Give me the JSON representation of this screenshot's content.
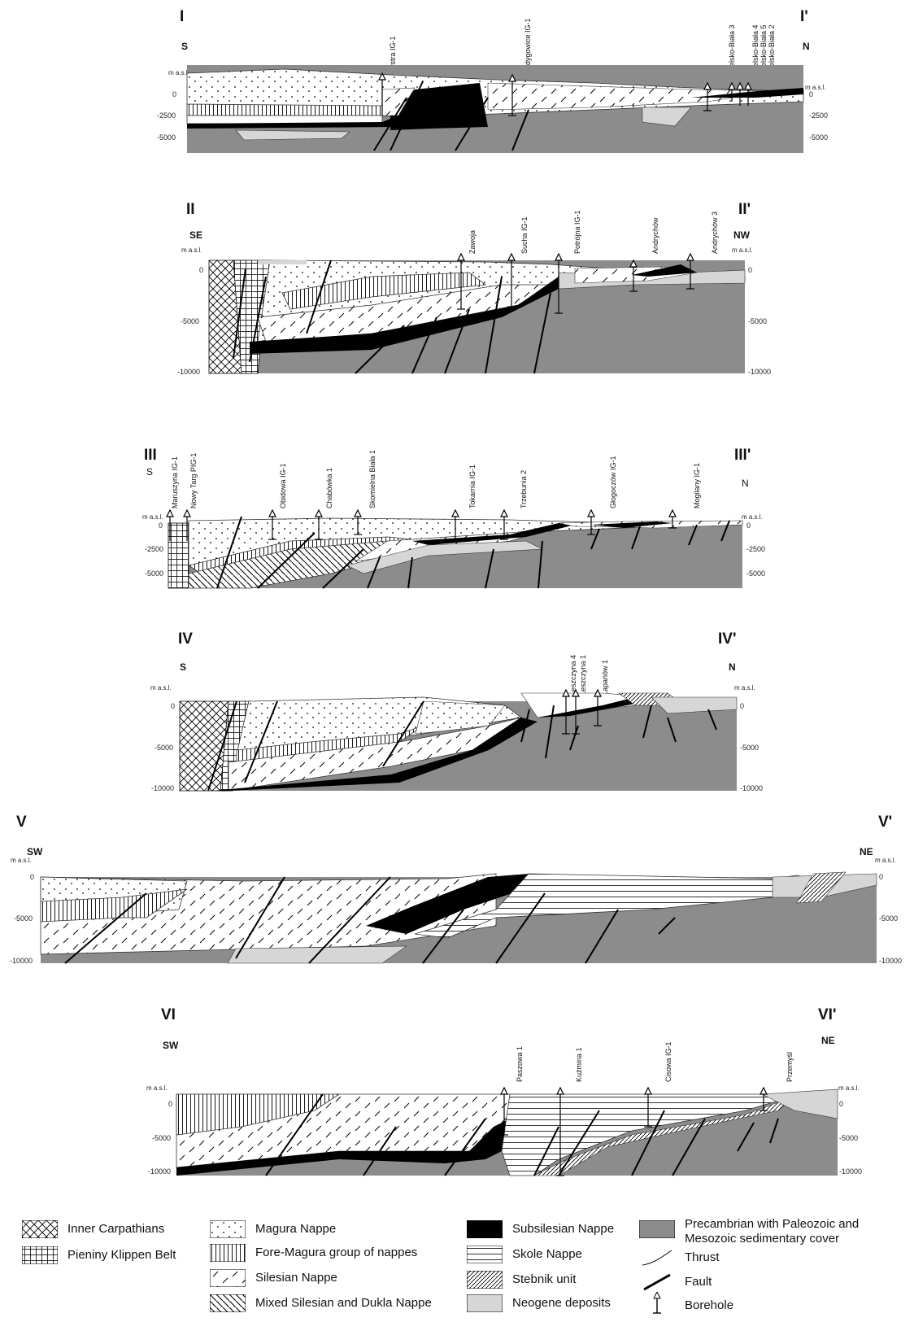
{
  "sections": [
    {
      "id": "I",
      "start": "I",
      "end": "I'",
      "left_dir": "S",
      "right_dir": "N",
      "masl": "m a.s.l.",
      "left_ticks": [
        "0",
        "-2500",
        "-5000"
      ],
      "right_ticks": [
        "0",
        "-2500",
        "-5000"
      ],
      "boreholes": [
        "Bystra IG-1",
        "Łodygowice IG-1",
        "Bielsko-Biała 3",
        "Bielsko-Biała 4",
        "Bielsko-Biała 5",
        "Bielsko-Biała 2"
      ]
    },
    {
      "id": "II",
      "start": "II",
      "end": "II'",
      "left_dir": "SE",
      "right_dir": "NW",
      "masl": "m a.s.l.",
      "left_ticks": [
        "0",
        "-5000",
        "-10000"
      ],
      "right_ticks": [
        "0",
        "-5000",
        "-10000"
      ],
      "boreholes": [
        "Zawoja",
        "Sucha IG-1",
        "Potrójna IG-1",
        "Andrychów",
        "Andrychów 3"
      ]
    },
    {
      "id": "III",
      "start": "III",
      "end": "III'",
      "left_dir": "S",
      "right_dir": "N",
      "masl": "m a.s.l.",
      "left_ticks": [
        "0",
        "-2500",
        "-5000"
      ],
      "right_ticks": [
        "0",
        "-2500",
        "-5000"
      ],
      "boreholes": [
        "Maruszyna IG-1",
        "Nowy Targ PIG-1",
        "Obidowa IG-1",
        "Chabówka 1",
        "Skomielna Biała 1",
        "Tokarnia IG-1",
        "Trzebunia 2",
        "Głogoczów IG-1",
        "Mogilany IG-1"
      ]
    },
    {
      "id": "IV",
      "start": "IV",
      "end": "IV'",
      "left_dir": "S",
      "right_dir": "N",
      "masl": "m a.s.l.",
      "left_ticks": [
        "0",
        "-5000",
        "-10000"
      ],
      "right_ticks": [
        "0",
        "-5000",
        "-10000"
      ],
      "boreholes": [
        "Leszczyna 4",
        "Leszczyna 1",
        "Łapanów 1"
      ]
    },
    {
      "id": "V",
      "start": "V",
      "end": "V'",
      "left_dir": "SW",
      "right_dir": "NE",
      "masl": "m a.s.l.",
      "left_ticks": [
        "0",
        "-5000",
        "-10000"
      ],
      "right_ticks": [
        "0",
        "-5000",
        "-10000"
      ],
      "boreholes": []
    },
    {
      "id": "VI",
      "start": "VI",
      "end": "VI'",
      "left_dir": "SW",
      "right_dir": "NE",
      "masl": "m a.s.l.",
      "left_ticks": [
        "0",
        "-5000",
        "-10000"
      ],
      "right_ticks": [
        "0",
        "-5000",
        "-10000"
      ],
      "boreholes": [
        "Paszowa 1",
        "Kuźmina 1",
        "Cisowa IG-1",
        "Przemyśl"
      ]
    }
  ],
  "legend": {
    "inner_carpathians": "Inner Carpathians",
    "pieniny": "Pieniny Klippen Belt",
    "magura": "Magura Nappe",
    "fore_magura": "Fore-Magura group of nappes",
    "silesian": "Silesian Nappe",
    "mixed": "Mixed Silesian and Dukla Nappe",
    "subsilesian": "Subsilesian Nappe",
    "skole": "Skole Nappe",
    "stebnik": "Stebnik unit",
    "neogene": "Neogene deposits",
    "precambrian": "Precambrian with Paleozoic and Mesozoic sedimentary cover",
    "thrust": "Thrust",
    "fault": "Fault",
    "borehole": "Borehole"
  }
}
